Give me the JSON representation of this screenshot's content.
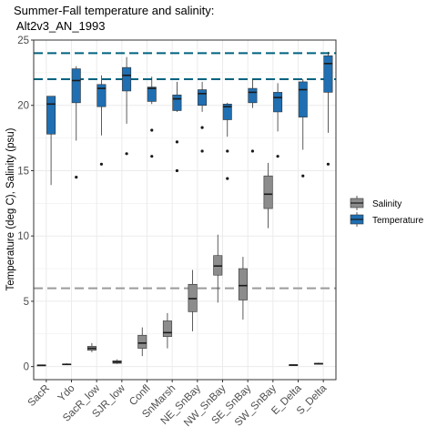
{
  "chart_data": {
    "type": "boxplot",
    "title_line1": "Summer-Fall temperature and salinity:",
    "title_line2": " Alt2v3_AN_1993",
    "ylabel": "Temperature (deg C), Salinity (psu)",
    "xlabel": "",
    "ylim": [
      -1,
      25
    ],
    "yticks": [
      0,
      5,
      10,
      15,
      20,
      25
    ],
    "grid": true,
    "legend_position": "right",
    "categories": [
      "SacR",
      "Ydo",
      "SacR_low",
      "SJR_low",
      "Confl",
      "SnMarsh",
      "NE_SnBay",
      "NW_SnBay",
      "SE_SnBay",
      "SW_SnBay",
      "E_Delta",
      "S_Delta"
    ],
    "reference_lines": [
      {
        "value": 24,
        "color": "#00627f",
        "style": "dashed"
      },
      {
        "value": 22,
        "color": "#00627f",
        "style": "dashed"
      },
      {
        "value": 6,
        "color": "#9a9a9a",
        "style": "dashed"
      }
    ],
    "series": [
      {
        "name": "Salinity",
        "color": "#8c8c8c",
        "boxes": [
          {
            "category": "SacR",
            "min": 0.1,
            "q1": 0.1,
            "median": 0.1,
            "q3": 0.12,
            "max": 0.15,
            "outliers": []
          },
          {
            "category": "Ydo",
            "min": 0.15,
            "q1": 0.15,
            "median": 0.17,
            "q3": 0.2,
            "max": 0.25,
            "outliers": []
          },
          {
            "category": "SacR_low",
            "min": 1.1,
            "q1": 1.25,
            "median": 1.4,
            "q3": 1.55,
            "max": 1.8,
            "outliers": []
          },
          {
            "category": "SJR_low",
            "min": 0.2,
            "q1": 0.25,
            "median": 0.35,
            "q3": 0.45,
            "max": 0.55,
            "outliers": []
          },
          {
            "category": "Confl",
            "min": 0.8,
            "q1": 1.4,
            "median": 1.8,
            "q3": 2.4,
            "max": 3.0,
            "outliers": []
          },
          {
            "category": "SnMarsh",
            "min": 1.4,
            "q1": 2.3,
            "median": 2.6,
            "q3": 3.5,
            "max": 4.1,
            "outliers": []
          },
          {
            "category": "NE_SnBay",
            "min": 2.7,
            "q1": 4.2,
            "median": 5.2,
            "q3": 6.3,
            "max": 7.4,
            "outliers": []
          },
          {
            "category": "NW_SnBay",
            "min": 4.9,
            "q1": 7.0,
            "median": 7.7,
            "q3": 8.5,
            "max": 10.1,
            "outliers": []
          },
          {
            "category": "SE_SnBay",
            "min": 3.6,
            "q1": 5.1,
            "median": 6.2,
            "q3": 7.5,
            "max": 8.4,
            "outliers": []
          },
          {
            "category": "SW_SnBay",
            "min": 10.6,
            "q1": 12.1,
            "median": 13.2,
            "q3": 14.6,
            "max": 15.6,
            "outliers": []
          },
          {
            "category": "E_Delta",
            "min": 0.1,
            "q1": 0.1,
            "median": 0.12,
            "q3": 0.14,
            "max": 0.16,
            "outliers": []
          },
          {
            "category": "S_Delta",
            "min": 0.2,
            "q1": 0.2,
            "median": 0.22,
            "q3": 0.25,
            "max": 0.3,
            "outliers": []
          }
        ]
      },
      {
        "name": "Temperature",
        "color": "#1f6fb2",
        "boxes": [
          {
            "category": "SacR",
            "min": 13.9,
            "q1": 17.8,
            "median": 20.1,
            "q3": 20.7,
            "max": 20.7,
            "outliers": []
          },
          {
            "category": "Ydo",
            "min": 17.3,
            "q1": 20.2,
            "median": 21.9,
            "q3": 22.8,
            "max": 23.0,
            "outliers": [
              14.5
            ]
          },
          {
            "category": "SacR_low",
            "min": 17.7,
            "q1": 19.9,
            "median": 21.3,
            "q3": 21.6,
            "max": 22.3,
            "outliers": [
              15.5
            ]
          },
          {
            "category": "SJR_low",
            "min": 18.6,
            "q1": 21.1,
            "median": 22.3,
            "q3": 22.9,
            "max": 23.7,
            "outliers": [
              16.3
            ]
          },
          {
            "category": "Confl",
            "min": 20.1,
            "q1": 20.3,
            "median": 21.3,
            "q3": 21.4,
            "max": 22.2,
            "outliers": [
              18.1,
              16.1
            ]
          },
          {
            "category": "SnMarsh",
            "min": 19.5,
            "q1": 19.6,
            "median": 20.5,
            "q3": 20.8,
            "max": 21.8,
            "outliers": [
              17.2,
              15.0
            ]
          },
          {
            "category": "NE_SnBay",
            "min": 19.5,
            "q1": 20.0,
            "median": 20.9,
            "q3": 21.2,
            "max": 21.8,
            "outliers": [
              18.3,
              16.5
            ]
          },
          {
            "category": "NW_SnBay",
            "min": 17.6,
            "q1": 18.9,
            "median": 19.9,
            "q3": 20.1,
            "max": 20.2,
            "outliers": [
              16.5,
              14.4
            ]
          },
          {
            "category": "SE_SnBay",
            "min": 19.8,
            "q1": 20.2,
            "median": 21.0,
            "q3": 21.3,
            "max": 22.0,
            "outliers": [
              16.5
            ]
          },
          {
            "category": "SW_SnBay",
            "min": 18.0,
            "q1": 19.5,
            "median": 20.6,
            "q3": 21.0,
            "max": 21.7,
            "outliers": [
              16.1
            ]
          },
          {
            "category": "E_Delta",
            "min": 16.6,
            "q1": 19.1,
            "median": 21.2,
            "q3": 21.8,
            "max": 22.0,
            "outliers": [
              14.6
            ]
          },
          {
            "category": "S_Delta",
            "min": 17.9,
            "q1": 21.0,
            "median": 23.2,
            "q3": 23.8,
            "max": 24.1,
            "outliers": [
              15.5
            ]
          }
        ]
      }
    ]
  }
}
